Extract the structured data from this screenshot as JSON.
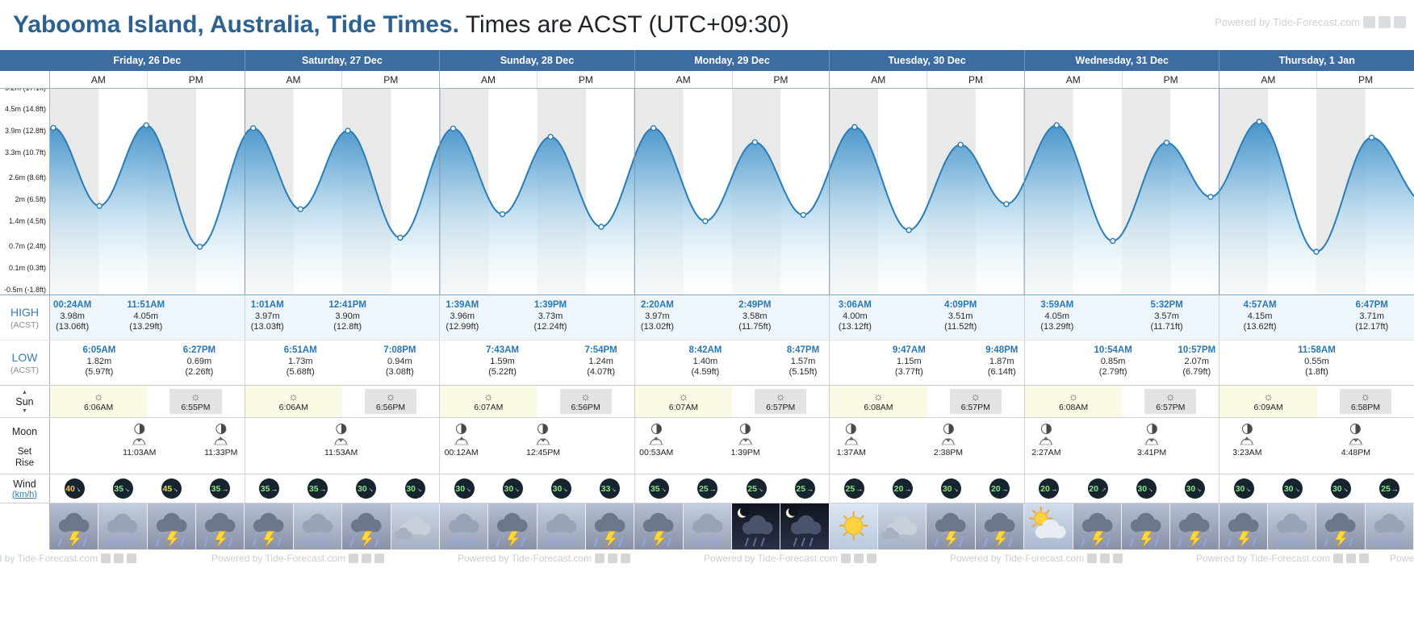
{
  "header": {
    "title_location": "Yabooma Island, Australia, Tide Times.",
    "title_times": " Times are ACST (UTC+09:30)",
    "watermark": "Powered by Tide-Forecast.com",
    "social_icons": [
      "facebook-icon",
      "twitter-icon",
      "share-icon"
    ]
  },
  "table": {
    "am_label": "AM",
    "pm_label": "PM",
    "days": [
      "Friday, 26 Dec",
      "Saturday, 27 Dec",
      "Sunday, 28 Dec",
      "Monday, 29 Dec",
      "Tuesday, 30 Dec",
      "Wednesday, 31 Dec",
      "Thursday, 1 Jan"
    ]
  },
  "rows": {
    "high_label": "HIGH",
    "high_sub": "(ACST)",
    "low_label": "LOW",
    "low_sub": "(ACST)",
    "sun_label": "Sun",
    "moon_label": "Moon",
    "moon_set": "Set",
    "moon_rise": "Rise",
    "wind_label": "Wind",
    "wind_unit": "(km/h)"
  },
  "chart_data": {
    "type": "area",
    "title": "Tide height curve, Friday 26 Dec - Thursday 1 Jan",
    "xlabel": "day of week (AM/PM)",
    "ylabel": "tide height",
    "ylim": [
      -0.68,
      5.06
    ],
    "grid": "alternating 6-hour shaded bands, vertical day separators",
    "y_ticks": [
      {
        "text": "5.2m (17.1ft)",
        "value": 5.2
      },
      {
        "text": "4.5m (14.8ft)",
        "value": 4.5
      },
      {
        "text": "3.9m (12.8ft)",
        "value": 3.9
      },
      {
        "text": "3.3m (10.7ft)",
        "value": 3.3
      },
      {
        "text": "2.6m (8.6ft)",
        "value": 2.6
      },
      {
        "text": "2m (6.5ft)",
        "value": 2.0
      },
      {
        "text": "1.4m (4.5ft)",
        "value": 1.4
      },
      {
        "text": "0.7m (2.4ft)",
        "value": 0.7
      },
      {
        "text": "0.1m (0.3ft)",
        "value": 0.1
      },
      {
        "text": "-0.5m (-1.8ft)",
        "value": -0.5
      }
    ],
    "extremes": [
      {
        "day": 0,
        "kind": "high",
        "time": "00:24AM",
        "hour": 0.4,
        "m": 3.98,
        "label_m": "3.98m",
        "label_ft": "(13.06ft)"
      },
      {
        "day": 0,
        "kind": "low",
        "time": "6:05AM",
        "hour": 6.08,
        "m": 1.82,
        "label_m": "1.82m",
        "label_ft": "(5.97ft)"
      },
      {
        "day": 0,
        "kind": "high",
        "time": "11:51AM",
        "hour": 11.85,
        "m": 4.05,
        "label_m": "4.05m",
        "label_ft": "(13.29ft)"
      },
      {
        "day": 0,
        "kind": "low",
        "time": "6:27PM",
        "hour": 18.45,
        "m": 0.69,
        "label_m": "0.69m",
        "label_ft": "(2.26ft)"
      },
      {
        "day": 1,
        "kind": "high",
        "time": "1:01AM",
        "hour": 1.02,
        "m": 3.97,
        "label_m": "3.97m",
        "label_ft": "(13.03ft)"
      },
      {
        "day": 1,
        "kind": "low",
        "time": "6:51AM",
        "hour": 6.85,
        "m": 1.73,
        "label_m": "1.73m",
        "label_ft": "(5.68ft)"
      },
      {
        "day": 1,
        "kind": "high",
        "time": "12:41PM",
        "hour": 12.68,
        "m": 3.9,
        "label_m": "3.90m",
        "label_ft": "(12.8ft)"
      },
      {
        "day": 1,
        "kind": "low",
        "time": "7:08PM",
        "hour": 19.13,
        "m": 0.94,
        "label_m": "0.94m",
        "label_ft": "(3.08ft)"
      },
      {
        "day": 2,
        "kind": "high",
        "time": "1:39AM",
        "hour": 1.65,
        "m": 3.96,
        "label_m": "3.96m",
        "label_ft": "(12.99ft)"
      },
      {
        "day": 2,
        "kind": "low",
        "time": "7:43AM",
        "hour": 7.72,
        "m": 1.59,
        "label_m": "1.59m",
        "label_ft": "(5.22ft)"
      },
      {
        "day": 2,
        "kind": "high",
        "time": "1:39PM",
        "hour": 13.65,
        "m": 3.73,
        "label_m": "3.73m",
        "label_ft": "(12.24ft)"
      },
      {
        "day": 2,
        "kind": "low",
        "time": "7:54PM",
        "hour": 19.9,
        "m": 1.24,
        "label_m": "1.24m",
        "label_ft": "(4.07ft)"
      },
      {
        "day": 3,
        "kind": "high",
        "time": "2:20AM",
        "hour": 2.33,
        "m": 3.97,
        "label_m": "3.97m",
        "label_ft": "(13.02ft)"
      },
      {
        "day": 3,
        "kind": "low",
        "time": "8:42AM",
        "hour": 8.7,
        "m": 1.4,
        "label_m": "1.40m",
        "label_ft": "(4.59ft)"
      },
      {
        "day": 3,
        "kind": "high",
        "time": "2:49PM",
        "hour": 14.82,
        "m": 3.58,
        "label_m": "3.58m",
        "label_ft": "(11.75ft)"
      },
      {
        "day": 3,
        "kind": "low",
        "time": "8:47PM",
        "hour": 20.78,
        "m": 1.57,
        "label_m": "1.57m",
        "label_ft": "(5.15ft)"
      },
      {
        "day": 4,
        "kind": "high",
        "time": "3:06AM",
        "hour": 3.1,
        "m": 4.0,
        "label_m": "4.00m",
        "label_ft": "(13.12ft)"
      },
      {
        "day": 4,
        "kind": "low",
        "time": "9:47AM",
        "hour": 9.78,
        "m": 1.15,
        "label_m": "1.15m",
        "label_ft": "(3.77ft)"
      },
      {
        "day": 4,
        "kind": "high",
        "time": "4:09PM",
        "hour": 16.15,
        "m": 3.51,
        "label_m": "3.51m",
        "label_ft": "(11.52ft)"
      },
      {
        "day": 4,
        "kind": "low",
        "time": "9:48PM",
        "hour": 21.8,
        "m": 1.87,
        "label_m": "1.87m",
        "label_ft": "(6.14ft)"
      },
      {
        "day": 5,
        "kind": "high",
        "time": "3:59AM",
        "hour": 3.98,
        "m": 4.05,
        "label_m": "4.05m",
        "label_ft": "(13.29ft)"
      },
      {
        "day": 5,
        "kind": "low",
        "time": "10:54AM",
        "hour": 10.9,
        "m": 0.85,
        "label_m": "0.85m",
        "label_ft": "(2.79ft)"
      },
      {
        "day": 5,
        "kind": "high",
        "time": "5:32PM",
        "hour": 17.53,
        "m": 3.57,
        "label_m": "3.57m",
        "label_ft": "(11.71ft)"
      },
      {
        "day": 5,
        "kind": "low",
        "time": "10:57PM",
        "hour": 22.95,
        "m": 2.07,
        "label_m": "2.07m",
        "label_ft": "(6.79ft)"
      },
      {
        "day": 6,
        "kind": "high",
        "time": "4:57AM",
        "hour": 4.95,
        "m": 4.15,
        "label_m": "4.15m",
        "label_ft": "(13.62ft)"
      },
      {
        "day": 6,
        "kind": "low",
        "time": "11:58AM",
        "hour": 11.97,
        "m": 0.55,
        "label_m": "0.55m",
        "label_ft": "(1.8ft)"
      },
      {
        "day": 6,
        "kind": "high",
        "time": "6:47PM",
        "hour": 18.78,
        "m": 3.71,
        "label_m": "3.71m",
        "label_ft": "(12.17ft)"
      }
    ]
  },
  "sun": [
    {
      "rise": "6:06AM",
      "set": "6:55PM"
    },
    {
      "rise": "6:06AM",
      "set": "6:56PM"
    },
    {
      "rise": "6:07AM",
      "set": "6:56PM"
    },
    {
      "rise": "6:07AM",
      "set": "6:57PM"
    },
    {
      "rise": "6:08AM",
      "set": "6:57PM"
    },
    {
      "rise": "6:08AM",
      "set": "6:57PM"
    },
    {
      "rise": "6:09AM",
      "set": "6:58PM"
    }
  ],
  "moon": [
    {
      "entries": [
        {
          "time": "11:03AM",
          "hour": 11.05,
          "kind": "set"
        },
        {
          "time": "11:33PM",
          "hour": 23.55,
          "kind": "rise"
        }
      ]
    },
    {
      "entries": [
        {
          "time": "11:53AM",
          "hour": 11.88,
          "kind": "set"
        }
      ]
    },
    {
      "entries": [
        {
          "time": "00:12AM",
          "hour": 0.2,
          "kind": "rise"
        },
        {
          "time": "12:45PM",
          "hour": 12.75,
          "kind": "set"
        }
      ]
    },
    {
      "entries": [
        {
          "time": "00:53AM",
          "hour": 0.88,
          "kind": "rise"
        },
        {
          "time": "1:39PM",
          "hour": 13.65,
          "kind": "set"
        }
      ]
    },
    {
      "entries": [
        {
          "time": "1:37AM",
          "hour": 1.62,
          "kind": "rise"
        },
        {
          "time": "2:38PM",
          "hour": 14.63,
          "kind": "set"
        }
      ]
    },
    {
      "entries": [
        {
          "time": "2:27AM",
          "hour": 2.45,
          "kind": "rise"
        },
        {
          "time": "3:41PM",
          "hour": 15.68,
          "kind": "set"
        }
      ]
    },
    {
      "entries": [
        {
          "time": "3:23AM",
          "hour": 3.38,
          "kind": "rise"
        },
        {
          "time": "4:48PM",
          "hour": 16.8,
          "kind": "set"
        }
      ]
    }
  ],
  "wind": [
    {
      "value": 40,
      "dir": 60
    },
    {
      "value": 35,
      "dir": 45
    },
    {
      "value": 45,
      "dir": 45
    },
    {
      "value": 35,
      "dir": 0
    },
    {
      "value": 35,
      "dir": 0
    },
    {
      "value": 35,
      "dir": 0
    },
    {
      "value": 30,
      "dir": 45
    },
    {
      "value": 30,
      "dir": 45
    },
    {
      "value": 30,
      "dir": 45
    },
    {
      "value": 30,
      "dir": 45
    },
    {
      "value": 30,
      "dir": 45
    },
    {
      "value": 33,
      "dir": 45
    },
    {
      "value": 35,
      "dir": 45
    },
    {
      "value": 25,
      "dir": 0
    },
    {
      "value": 25,
      "dir": 45
    },
    {
      "value": 25,
      "dir": 0
    },
    {
      "value": 25,
      "dir": 0
    },
    {
      "value": 20,
      "dir": 0
    },
    {
      "value": 30,
      "dir": 45
    },
    {
      "value": 20,
      "dir": 0
    },
    {
      "value": 20,
      "dir": 0
    },
    {
      "value": 20,
      "dir": -45
    },
    {
      "value": 30,
      "dir": 45
    },
    {
      "value": 30,
      "dir": 45
    },
    {
      "value": 30,
      "dir": 45
    },
    {
      "value": 30,
      "dir": 45
    },
    {
      "value": 30,
      "dir": 45
    },
    {
      "value": 25,
      "dir": 0
    }
  ],
  "weather": [
    "storm",
    "rain",
    "storm",
    "storm",
    "storm",
    "rain",
    "storm",
    "cloud",
    "rain",
    "storm",
    "rain",
    "storm",
    "storm",
    "rain",
    "night-storm",
    "night-storm",
    "sunny",
    "cloud",
    "storm",
    "storm",
    "partly-cloudy",
    "storm",
    "storm",
    "storm",
    "storm",
    "rain",
    "storm",
    "rain"
  ],
  "footer": {
    "watermark": "Powered by Tide-Forecast.com"
  }
}
